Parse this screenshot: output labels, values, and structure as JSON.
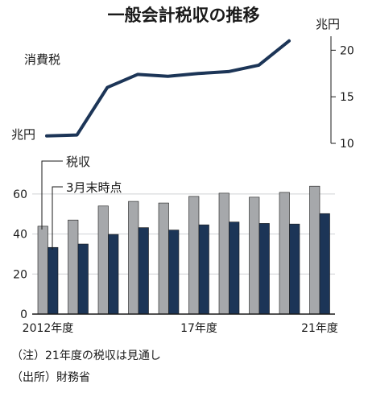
{
  "chart_data": [
    {
      "type": "line",
      "title": "一般会計税収の推移",
      "series": [
        {
          "name": "消費税",
          "values": [
            10.8,
            10.9,
            16.0,
            17.4,
            17.2,
            17.5,
            17.7,
            18.4,
            21.0
          ]
        }
      ],
      "y_unit_left": "兆円",
      "y_unit_right": "兆円",
      "yticks": [
        "10",
        "15",
        "20"
      ],
      "ylim": [
        10,
        21.5
      ],
      "color": "#1c3557"
    },
    {
      "type": "bar",
      "categories": [
        "2012年度",
        "",
        "",
        "",
        "",
        "17年度",
        "",
        "",
        "",
        "21年度"
      ],
      "series": [
        {
          "name": "税収",
          "values": [
            43.9,
            47.0,
            54.0,
            56.3,
            55.5,
            58.8,
            60.4,
            58.4,
            60.8,
            63.9
          ],
          "color": "#a6a8ab"
        },
        {
          "name": "3月末時点",
          "values": [
            33.3,
            35.0,
            39.8,
            43.2,
            42.0,
            44.6,
            46.0,
            45.3,
            45.0,
            50.2
          ],
          "color": "#1c3557"
        }
      ],
      "yticks": [
        "0",
        "20",
        "40",
        "60"
      ],
      "ylim": [
        0,
        68
      ]
    }
  ],
  "notes": {
    "line1": "（注）21年度の税収は見通し",
    "line2": "（出所）財務省"
  }
}
